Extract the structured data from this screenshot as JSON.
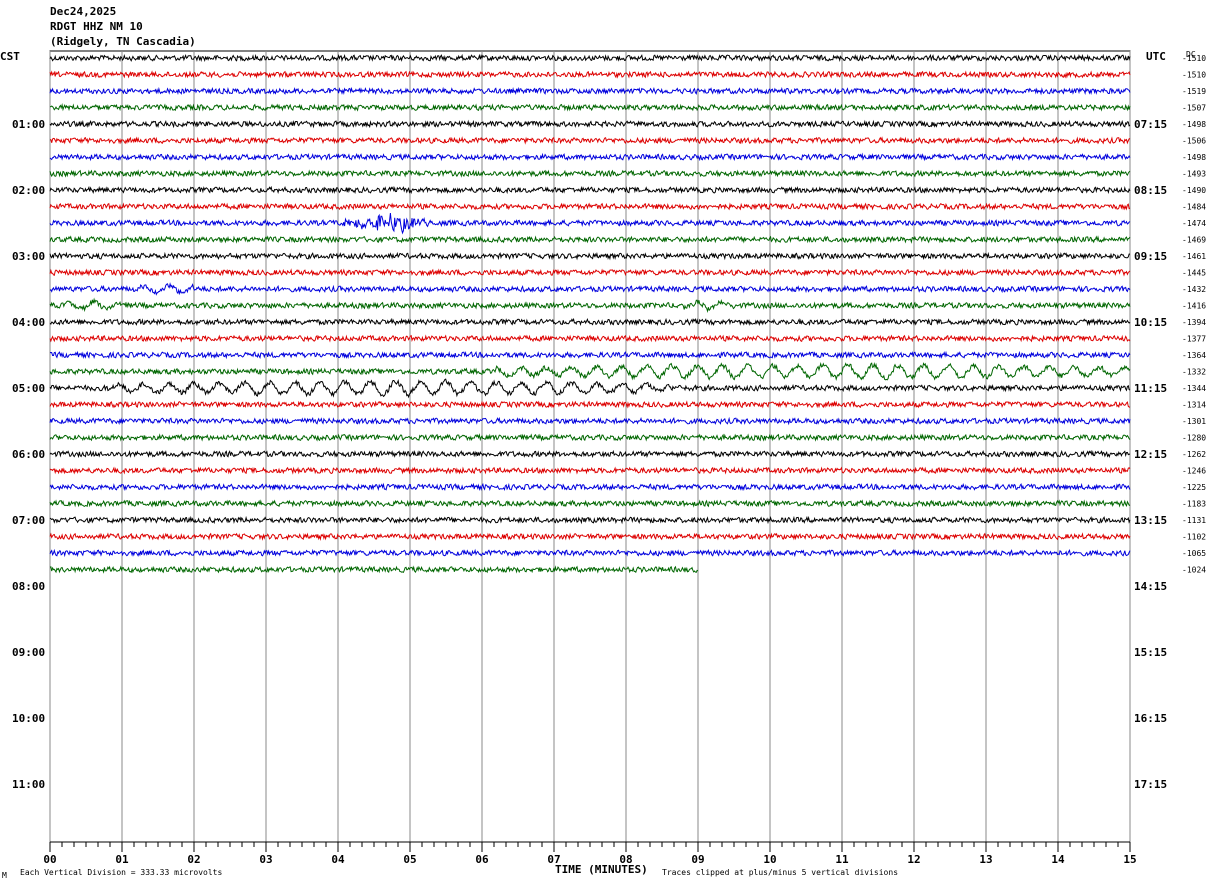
{
  "header": {
    "date": "Dec24,2025",
    "station": "RDGT HHZ NM 10",
    "location": "(Ridgely, TN Cascadia)"
  },
  "axis": {
    "left_tz": "CST",
    "right_tz": "UTC",
    "dc_label": "DC",
    "xlabel": "TIME (MINUTES)",
    "footer_left": "Each Vertical Division =  333.33 microvolts",
    "footer_right": "Traces clipped at plus/minus 5 vertical divisions",
    "corner_mark": "M"
  },
  "chart_data": {
    "type": "line",
    "title": "RDGT HHZ NM 10",
    "xlabel": "TIME (MINUTES)",
    "ylabel": "",
    "xlim": [
      0,
      15
    ],
    "x_ticks": [
      "00",
      "01",
      "02",
      "03",
      "04",
      "05",
      "06",
      "07",
      "08",
      "09",
      "10",
      "11",
      "12",
      "13",
      "14",
      "15"
    ],
    "cst_hour_labels": [
      "01:00",
      "02:00",
      "03:00",
      "04:00",
      "05:00",
      "06:00",
      "07:00",
      "08:00",
      "09:00",
      "10:00",
      "11:00"
    ],
    "utc_hour_labels": [
      "07:15",
      "08:15",
      "09:15",
      "10:15",
      "11:15",
      "12:15",
      "13:15",
      "14:15",
      "15:15",
      "16:15",
      "17:15"
    ],
    "trace_colors": [
      "#000000",
      "#dd0000",
      "#0000dd",
      "#006600"
    ],
    "rows_per_hour": 4,
    "total_rows": 48,
    "recorded_rows": 32,
    "last_row_end_minute": 9,
    "dc_offsets": [
      "-1510",
      "-1510",
      "-1519",
      "-1507",
      "-1498",
      "-1506",
      "-1498",
      "-1493",
      "-1490",
      "-1484",
      "-1474",
      "-1469",
      "-1461",
      "-1445",
      "-1432",
      "-1416",
      "-1394",
      "-1377",
      "-1364",
      "-1332",
      "-1344",
      "-1314",
      "-1301",
      "-1280",
      "-1262",
      "-1246",
      "-1225",
      "-1183",
      "-1131",
      "-1102",
      "-1065",
      "-1024"
    ],
    "events": [
      {
        "row": 10,
        "start_min": 4.0,
        "end_min": 5.3,
        "amplitude": 9
      },
      {
        "row": 14,
        "start_min": 1.2,
        "end_min": 2.0,
        "amplitude": 5
      },
      {
        "row": 15,
        "start_min": 0.2,
        "end_min": 1.0,
        "amplitude": 5
      },
      {
        "row": 15,
        "start_min": 8.8,
        "end_min": 9.5,
        "amplitude": 5
      },
      {
        "row": 19,
        "start_min": 6.2,
        "end_min": 15.0,
        "amplitude": 8
      },
      {
        "row": 20,
        "start_min": 0.8,
        "end_min": 8.6,
        "amplitude": 8
      }
    ],
    "grid": "vertical minute lines"
  }
}
